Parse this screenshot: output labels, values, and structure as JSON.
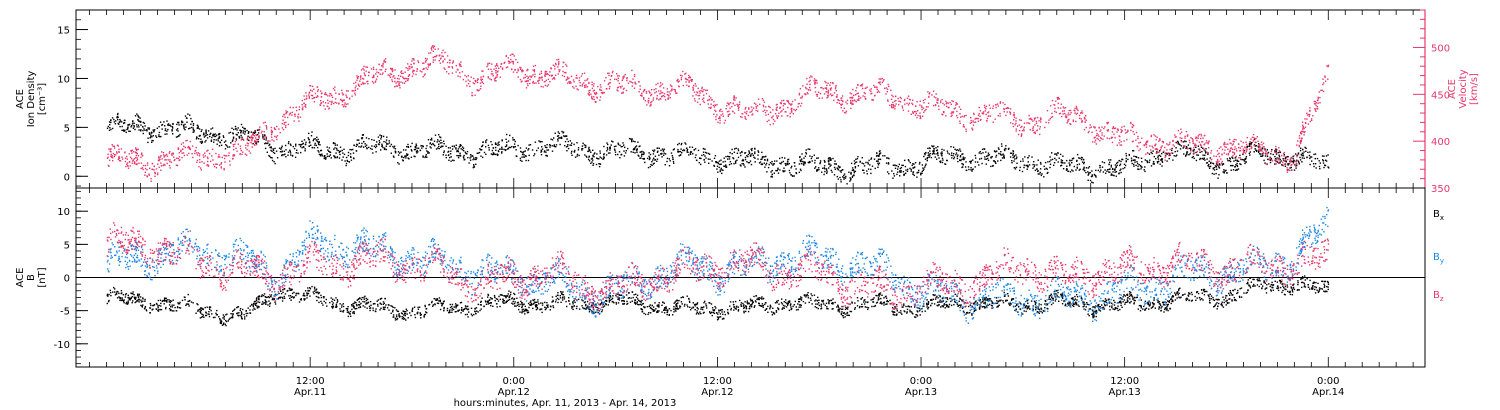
{
  "chart_data": [
    {
      "type": "scatter",
      "panel": "top",
      "left_axis": {
        "label_lines": [
          "ACE",
          "Ion Density",
          "[cm⁻³]"
        ],
        "range": [
          -1.2,
          17
        ],
        "ticks": [
          0,
          5,
          10,
          15
        ],
        "tick_labels": [
          "0",
          "5",
          "10",
          "15"
        ],
        "color": "#000000"
      },
      "right_axis": {
        "label_lines": [
          "ACE",
          "Velocity",
          "[km/s]"
        ],
        "range": [
          350,
          540
        ],
        "ticks": [
          350,
          400,
          450,
          500
        ],
        "tick_labels": [
          "350",
          "400",
          "450",
          "500"
        ],
        "color": "#e8386a"
      },
      "series": [
        {
          "name": "",
          "axis": "left",
          "color": "#000000",
          "x_hours": [
            0,
            2,
            4,
            6,
            8,
            10,
            12,
            14,
            16,
            18,
            20,
            22,
            24,
            26,
            28,
            30,
            32,
            34,
            36,
            38,
            40,
            42,
            44,
            46,
            48,
            50,
            52,
            54,
            56,
            58,
            60,
            62,
            64,
            66,
            68,
            70,
            72
          ],
          "y": [
            5,
            5.2,
            4.8,
            4.5,
            4,
            3,
            2.8,
            2.8,
            3,
            2.8,
            2.6,
            2.5,
            3,
            3.2,
            2.8,
            2.5,
            2.5,
            2.2,
            2,
            1.5,
            1.5,
            1,
            1,
            1,
            1.5,
            2.2,
            1.8,
            1.8,
            1.2,
            1,
            0.8,
            2.5,
            2.3,
            1.2,
            2.5,
            2,
            1
          ],
          "spread": 1.0
        },
        {
          "name": "",
          "axis": "right",
          "color": "#e8386a",
          "x_hours": [
            0,
            2,
            4,
            6,
            8,
            10,
            12,
            14,
            16,
            18,
            20,
            22,
            24,
            26,
            28,
            30,
            32,
            34,
            36,
            38,
            40,
            42,
            44,
            46,
            48,
            50,
            52,
            54,
            56,
            58,
            60,
            62,
            64,
            66,
            68,
            70,
            72
          ],
          "y": [
            380,
            378,
            382,
            385,
            388,
            420,
            440,
            455,
            470,
            480,
            485,
            465,
            480,
            470,
            465,
            460,
            455,
            458,
            440,
            430,
            440,
            455,
            450,
            450,
            440,
            430,
            430,
            420,
            430,
            420,
            400,
            400,
            395,
            395,
            390,
            385,
            470
          ],
          "spread": 12
        }
      ]
    },
    {
      "type": "scatter",
      "panel": "bottom",
      "left_axis": {
        "label_lines": [
          "ACE",
          "B",
          "[nT]"
        ],
        "range": [
          -13.5,
          13.5
        ],
        "ticks": [
          -10,
          -5,
          0,
          5,
          10
        ],
        "tick_labels": [
          "-10",
          "-5",
          "0",
          "5",
          "10"
        ],
        "color": "#000000"
      },
      "zero_line": true,
      "series": [
        {
          "name": "B_x",
          "legend_base": "B",
          "legend_sub": "x",
          "color": "#000000",
          "x_hours": [
            0,
            2,
            4,
            6,
            8,
            10,
            12,
            14,
            16,
            18,
            20,
            22,
            24,
            26,
            28,
            30,
            32,
            34,
            36,
            38,
            40,
            42,
            44,
            46,
            48,
            50,
            52,
            54,
            56,
            58,
            60,
            62,
            64,
            66,
            68,
            70,
            72
          ],
          "y": [
            -3,
            -3.5,
            -4,
            -5,
            -6,
            -2,
            -3,
            -4,
            -4.5,
            -5,
            -4.5,
            -4,
            -3.5,
            -4,
            -3.8,
            -3.5,
            -4,
            -4.5,
            -4.5,
            -4.5,
            -3.5,
            -4,
            -4,
            -4,
            -4.5,
            -3.5,
            -4,
            -4,
            -3.5,
            -4,
            -4,
            -3.5,
            -3,
            -3,
            -1,
            -1,
            -2
          ],
          "spread": 1.1
        },
        {
          "name": "B_y",
          "legend_base": "B",
          "legend_sub": "y",
          "color": "#1e88e5",
          "x_hours": [
            0,
            2,
            4,
            6,
            8,
            10,
            12,
            14,
            16,
            18,
            20,
            22,
            24,
            26,
            28,
            30,
            32,
            34,
            36,
            38,
            40,
            42,
            44,
            46,
            48,
            50,
            52,
            54,
            56,
            58,
            60,
            62,
            64,
            66,
            68,
            70,
            72
          ],
          "y": [
            2,
            3,
            4,
            4,
            3,
            0,
            5,
            5,
            4,
            3,
            2,
            1,
            0,
            0,
            -2,
            -2,
            0,
            2,
            1,
            2,
            3,
            3,
            2,
            1,
            -2,
            -3,
            -3,
            -3,
            -3,
            -3,
            -2,
            -1,
            1,
            1,
            2,
            3,
            8
          ],
          "spread": 2.2
        },
        {
          "name": "B_z",
          "legend_base": "B",
          "legend_sub": "z",
          "color": "#e8386a",
          "x_hours": [
            0,
            2,
            4,
            6,
            8,
            10,
            12,
            14,
            16,
            18,
            20,
            22,
            24,
            26,
            28,
            30,
            32,
            34,
            36,
            38,
            40,
            42,
            44,
            46,
            48,
            50,
            52,
            54,
            56,
            58,
            60,
            62,
            64,
            66,
            68,
            70,
            72
          ],
          "y": [
            5,
            5,
            4,
            2,
            1,
            0,
            2,
            2,
            3,
            2,
            1,
            -1,
            0,
            1,
            -1,
            -2,
            0,
            1,
            2,
            2,
            1,
            1,
            -1,
            -2,
            -1,
            -1,
            0,
            2,
            0,
            1,
            1,
            2,
            2,
            1,
            2,
            2,
            3
          ],
          "spread": 2.2
        }
      ]
    }
  ],
  "x_axis": {
    "title": "hours:minutes, Apr. 11, 2013 - Apr. 14, 2013",
    "range_hours": [
      -1.8,
      77.7
    ],
    "minor_tick_step_hours": 1,
    "major_ticks": [
      {
        "hours": 12,
        "line1": "12:00",
        "line2": "Apr.11"
      },
      {
        "hours": 24,
        "line1": "0:00",
        "line2": "Apr.12"
      },
      {
        "hours": 36,
        "line1": "12:00",
        "line2": "Apr.12"
      },
      {
        "hours": 48,
        "line1": "0:00",
        "line2": "Apr.13"
      },
      {
        "hours": 60,
        "line1": "12:00",
        "line2": "Apr.13"
      },
      {
        "hours": 72,
        "line1": "0:00",
        "line2": "Apr.14"
      }
    ]
  }
}
